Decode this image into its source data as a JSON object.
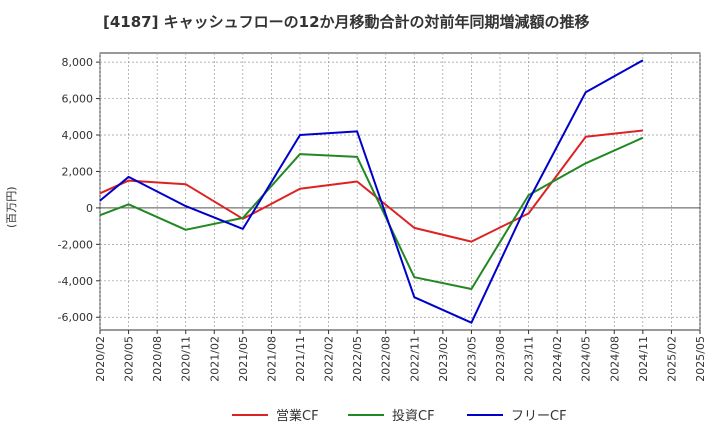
{
  "chart_data": {
    "type": "line",
    "title": "[4187]  キャッシュフローの12か月移動合計の対前年同期増減額の推移",
    "ylabel": "(百万円)",
    "xlabel": "",
    "ylim": [
      -6700,
      8500
    ],
    "y_ticks": [
      8000,
      6000,
      4000,
      2000,
      0,
      -2000,
      -4000,
      -6000
    ],
    "y_tick_labels": [
      "8,000",
      "6,000",
      "4,000",
      "2,000",
      "0",
      "-2,000",
      "-4,000",
      "-6,000"
    ],
    "x_tick_labels": [
      "2020/02",
      "2020/05",
      "2020/08",
      "2020/11",
      "2021/02",
      "2021/05",
      "2021/08",
      "2021/11",
      "2022/02",
      "2022/05",
      "2022/08",
      "2022/11",
      "2023/02",
      "2023/05",
      "2023/08",
      "2023/11",
      "2024/02",
      "2024/05",
      "2024/08",
      "2024/11",
      "2025/02",
      "2025/05"
    ],
    "grid": true,
    "legend_position": "bottom",
    "series": [
      {
        "name": "営業CF",
        "color": "#dd2222",
        "x": [
          "2020/02",
          "2020/05",
          "2020/11",
          "2021/05",
          "2021/11",
          "2022/05",
          "2022/11",
          "2023/05",
          "2023/11",
          "2024/05",
          "2024/11"
        ],
        "values": [
          800,
          1500,
          1300,
          -600,
          1050,
          1450,
          -1100,
          -1850,
          -300,
          3900,
          4250
        ]
      },
      {
        "name": "投資CF",
        "color": "#228822",
        "x": [
          "2020/02",
          "2020/05",
          "2020/11",
          "2021/05",
          "2021/11",
          "2022/05",
          "2022/11",
          "2023/05",
          "2023/11",
          "2024/05",
          "2024/11"
        ],
        "values": [
          -400,
          200,
          -1200,
          -550,
          2950,
          2800,
          -3800,
          -4450,
          700,
          2450,
          3850
        ]
      },
      {
        "name": "フリーCF",
        "color": "#0000cc",
        "x": [
          "2020/02",
          "2020/05",
          "2020/11",
          "2021/05",
          "2021/11",
          "2022/05",
          "2022/11",
          "2023/05",
          "2023/11",
          "2024/05",
          "2024/11"
        ],
        "values": [
          400,
          1700,
          100,
          -1150,
          4000,
          4200,
          -4900,
          -6300,
          400,
          6350,
          8100
        ]
      }
    ]
  }
}
